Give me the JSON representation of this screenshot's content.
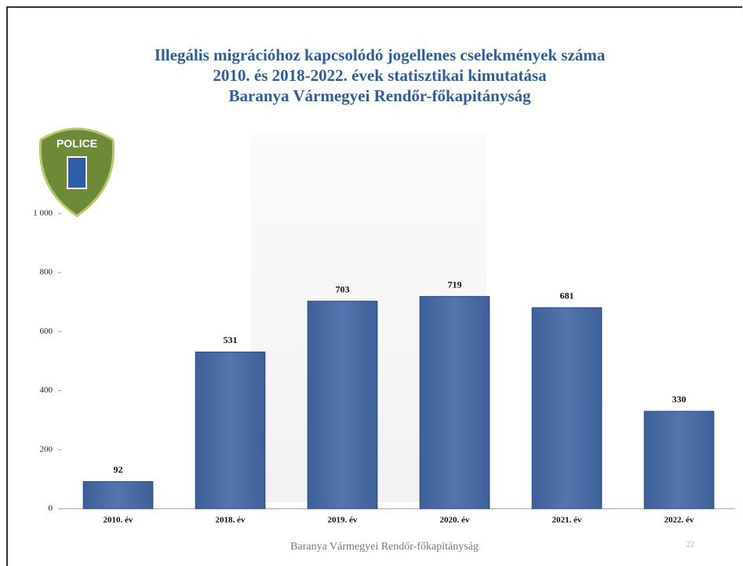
{
  "chart_data": {
    "type": "bar",
    "title": [
      "Illegális migrációhoz kapcsolódó jogellenes cselekmények száma",
      "2010. és 2018-2022. évek statisztikai kimutatása",
      "Baranya Vármegyei Rendőr-főkapitányság"
    ],
    "categories": [
      "2010. év",
      "2018. év",
      "2019. év",
      "2020. év",
      "2021. év",
      "2022. év"
    ],
    "values": [
      92,
      531,
      703,
      719,
      681,
      330
    ],
    "color": "#4a6aa5",
    "ylim": [
      0,
      1000
    ],
    "yticks": [
      0,
      200,
      400,
      600,
      800,
      {
        "value": 1000,
        "label": "1 000"
      }
    ],
    "grid": false
  },
  "logo": {
    "title": "POLICE"
  },
  "footer": {
    "text": "Baranya Vármegyei Rendőr-főkapitányság",
    "page": "22"
  }
}
